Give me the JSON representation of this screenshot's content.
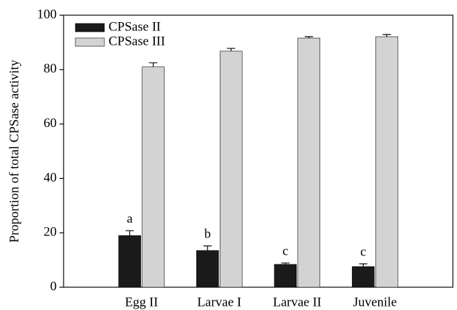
{
  "chart_data": {
    "type": "bar",
    "ylabel": "Proportion of total CPSase activity",
    "categories": [
      "Egg II",
      "Larvae I",
      "Larvae II",
      "Juvenile"
    ],
    "series": [
      {
        "name": "CPSase II",
        "color": "#1a1a1a",
        "values": [
          19.0,
          13.5,
          8.4,
          7.6
        ],
        "errors": [
          1.8,
          1.7,
          0.5,
          1.0
        ],
        "annotations": [
          "a",
          "b",
          "c",
          "c"
        ]
      },
      {
        "name": "CPSase III",
        "color": "#d3d3d3",
        "values": [
          81.0,
          86.8,
          91.6,
          92.1
        ],
        "errors": [
          1.5,
          1.0,
          0.5,
          0.8
        ]
      }
    ],
    "ylim": [
      0,
      100
    ],
    "yticks": [
      0,
      20,
      40,
      60,
      80,
      100
    ],
    "legend": "upper left"
  }
}
